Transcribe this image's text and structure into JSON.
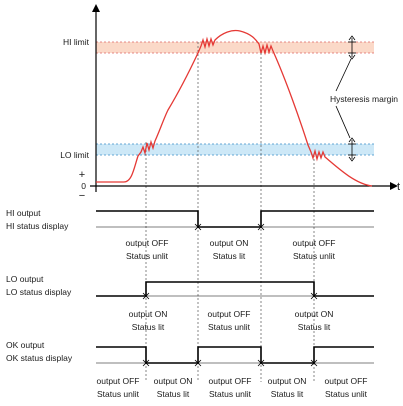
{
  "levels": {
    "hi_limit": "HI limit",
    "lo_limit": "LO limit",
    "plus_sign": "+",
    "zero": "0",
    "minus_sign": "−",
    "time_axis": "t",
    "hysteresis": "Hysteresis margin"
  },
  "signals": {
    "hi": {
      "line1": "HI output",
      "line2": "HI status display"
    },
    "lo": {
      "line1": "LO output",
      "line2": "LO status display"
    },
    "ok": {
      "line1": "OK output",
      "line2": "OK status display"
    }
  },
  "states": {
    "hi": [
      {
        "a": "output OFF",
        "b": "Status unlit"
      },
      {
        "a": "output ON",
        "b": "Status lit"
      },
      {
        "a": "output OFF",
        "b": "Status unlit"
      }
    ],
    "lo": [
      {
        "a": "output ON",
        "b": "Status lit"
      },
      {
        "a": "output OFF",
        "b": "Status unlit"
      },
      {
        "a": "output ON",
        "b": "Status lit"
      }
    ],
    "ok": [
      {
        "a": "output OFF",
        "b": "Status unlit"
      },
      {
        "a": "output ON",
        "b": "Status lit"
      },
      {
        "a": "output OFF",
        "b": "Status unlit"
      },
      {
        "a": "output ON",
        "b": "Status lit"
      },
      {
        "a": "output OFF",
        "b": "Status unlit"
      }
    ]
  },
  "colors": {
    "signal_curve": "#e53935",
    "hi_band": "#fbd9c8",
    "lo_band": "#cde8f7",
    "axis": "#000000",
    "guide": "#555555"
  }
}
